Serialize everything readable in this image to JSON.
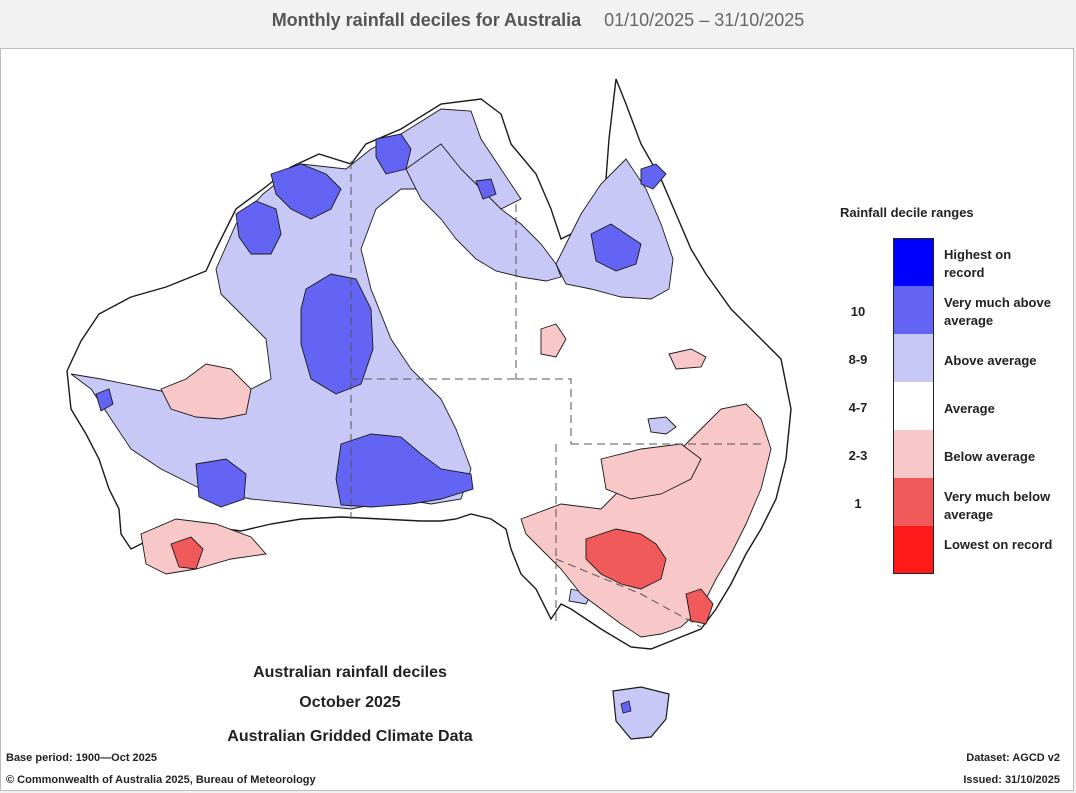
{
  "header": {
    "title": "Monthly rainfall deciles for Australia",
    "date_range": "01/10/2025 – 31/10/2025"
  },
  "legend": {
    "title": "Rainfall decile ranges",
    "items": [
      {
        "label": "Highest on record",
        "range": "",
        "color": "#0000ff"
      },
      {
        "label": "Very much above average",
        "range": "10",
        "color": "#6464f4"
      },
      {
        "label": "Above average",
        "range": "8-9",
        "color": "#c8c8f6"
      },
      {
        "label": "Average",
        "range": "4-7",
        "color": "#ffffff"
      },
      {
        "label": "Below average",
        "range": "2-3",
        "color": "#f8c8c8"
      },
      {
        "label": "Very much below average",
        "range": "1",
        "color": "#f05a5a"
      },
      {
        "label": "Lowest on record",
        "range": "",
        "color": "#ff1a1a"
      }
    ]
  },
  "caption": {
    "line1": "Australian rainfall deciles",
    "line2": "October 2025",
    "line3": "Australian Gridded Climate Data"
  },
  "footer": {
    "base_period": "Base period: 1900—Oct 2025",
    "dataset": "Dataset: AGCD v2",
    "copyright": "© Commonwealth of Australia 2025, Bureau of Meteorology",
    "issued": "Issued: 31/10/2025"
  },
  "colors": {
    "outline": "#1a1a1a",
    "border_dash": "#555555"
  }
}
